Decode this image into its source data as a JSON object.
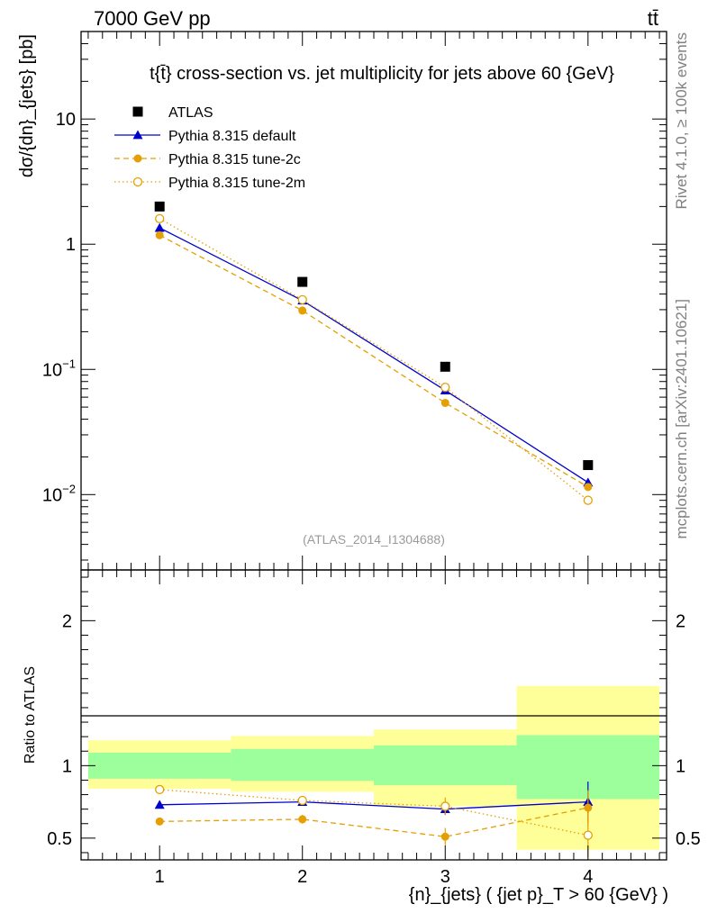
{
  "header": {
    "energy_label": "7000 GeV pp",
    "process_label": "tt̄"
  },
  "side_labels": {
    "rivet": "Rivet 4.1.0, ≥ 100k events",
    "mcplots": "mcplots.cern.ch [arXiv:2401.10621]"
  },
  "chart_data": {
    "type": "scatter",
    "title": "tt̄ cross-section vs. jet multiplicity for jets above 60 GeV",
    "title_display": "t{t̄} cross-section vs. jet multiplicity for jets above 60 {GeV}",
    "ylabel_main": "dσ/{dn}_{jets} [pb]",
    "ylabel_ratio": "Ratio to ATLAS",
    "xlabel": "{n}_{jets} ( {jet p}_T > 60 {GeV} )",
    "watermark": "(ATLAS_2014_I1304688)",
    "x": [
      1,
      2,
      3,
      4
    ],
    "x_tick_labels": [
      "1",
      "2",
      "3",
      "4"
    ],
    "xlim": [
      0.45,
      4.55
    ],
    "ylim_main": [
      0.0025,
      50
    ],
    "yscale_main": "log",
    "y_tick_labels_main": [
      "10^-2",
      "10^-1",
      "1",
      "10"
    ],
    "ylim_ratio": [
      0.35,
      2.35
    ],
    "y_tick_labels_ratio": [
      "0.5",
      "1",
      "2"
    ],
    "legend_position": "top-left",
    "series": [
      {
        "name": "ATLAS",
        "color": "#000000",
        "marker": "square",
        "values": [
          2.0,
          0.5,
          0.105,
          0.0172
        ]
      },
      {
        "name": "Pythia 8.315 default",
        "color": "#0000cc",
        "marker": "triangle",
        "line": "solid",
        "values": [
          1.35,
          0.355,
          0.068,
          0.0125
        ],
        "ratio": [
          0.73,
          0.75,
          0.7,
          0.75
        ],
        "ratio_err": [
          0.005,
          0.02,
          0.04,
          0.14
        ]
      },
      {
        "name": "Pythia 8.315 tune-2c",
        "color": "#e69f00",
        "marker": "filled-circle",
        "line": "dashed",
        "values": [
          1.18,
          0.295,
          0.054,
          0.0115
        ],
        "ratio": [
          0.615,
          0.63,
          0.51,
          0.71
        ],
        "ratio_err": [
          0.01,
          0.03,
          0.06,
          0.12
        ]
      },
      {
        "name": "Pythia 8.315 tune-2m",
        "color": "#e69f00",
        "marker": "open-circle",
        "line": "dotted",
        "values": [
          1.6,
          0.36,
          0.072,
          0.009
        ],
        "ratio": [
          0.835,
          0.76,
          0.72,
          0.52
        ],
        "ratio_err": [
          0.005,
          0.02,
          0.06,
          0.15
        ]
      }
    ],
    "ratio_bands": {
      "x_edges": [
        [
          0.5,
          1.5
        ],
        [
          1.5,
          2.5
        ],
        [
          2.5,
          3.5
        ],
        [
          3.5,
          4.5
        ]
      ],
      "inner": [
        [
          0.91,
          1.09
        ],
        [
          0.895,
          1.115
        ],
        [
          0.865,
          1.14
        ],
        [
          0.77,
          1.21
        ]
      ],
      "outer": [
        [
          0.84,
          1.175
        ],
        [
          0.82,
          1.205
        ],
        [
          0.72,
          1.25
        ],
        [
          0.42,
          1.55
        ]
      ],
      "inner_color": "#9cff9c",
      "outer_color": "#ffff99"
    }
  }
}
